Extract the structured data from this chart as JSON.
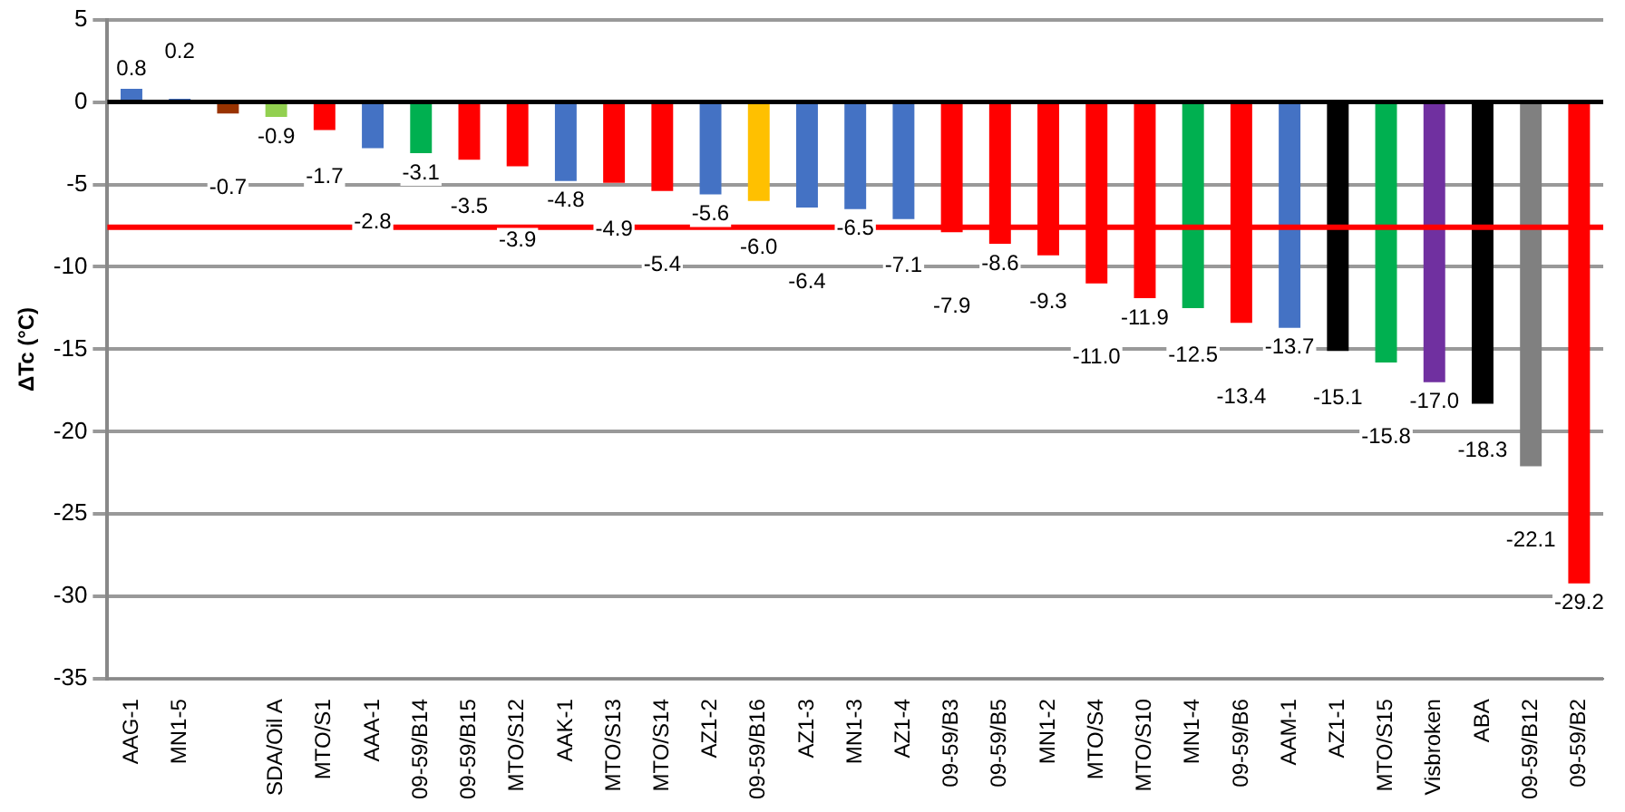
{
  "chart_data": {
    "type": "bar",
    "ylabel": "ΔTc (°C)",
    "categories": [
      "AAG-1",
      "MN1-5",
      null,
      "SDA/Oil A",
      "MTO/S1",
      "AAA-1",
      "09-59/B14",
      "09-59/B15",
      "MTO/S12",
      "AAK-1",
      "MTO/S13",
      "MTO/S14",
      "AZ1-2",
      "09-59/B16",
      "AZ1-3",
      "MN1-3",
      "AZ1-4",
      "09-59/B3",
      "09-59/B5",
      "MN1-2",
      "MTO/S4",
      "MTO/S10",
      "MN1-4",
      "09-59/B6",
      "AAM-1",
      "AZ1-1",
      "MTO/S15",
      "Visbroken",
      "ABA",
      "09-59/B12",
      "09-59/B2"
    ],
    "values": [
      0.8,
      0.2,
      -0.7,
      -0.9,
      -1.7,
      -2.8,
      -3.1,
      -3.5,
      -3.9,
      -4.8,
      -4.9,
      -5.4,
      -5.6,
      -6.0,
      -6.4,
      -6.5,
      -7.1,
      -7.9,
      -8.6,
      -9.3,
      -11.0,
      -11.9,
      -12.5,
      -13.4,
      -13.7,
      -15.1,
      -15.8,
      -17.0,
      -18.3,
      -22.1,
      -29.2
    ],
    "colors": [
      "#4472c4",
      "#4472c4",
      "#993300",
      "#92d050",
      "#ff0000",
      "#4472c4",
      "#00b050",
      "#ff0000",
      "#ff0000",
      "#4472c4",
      "#ff0000",
      "#ff0000",
      "#4472c4",
      "#ffc000",
      "#4472c4",
      "#4472c4",
      "#4472c4",
      "#ff0000",
      "#ff0000",
      "#ff0000",
      "#ff0000",
      "#ff0000",
      "#00b050",
      "#ff0000",
      "#4472c4",
      "#000000",
      "#00b050",
      "#7030a0",
      "#000000",
      "#808080",
      "#ff0000"
    ],
    "ylim": [
      -35,
      5
    ],
    "yticks": [
      -35,
      -30,
      -25,
      -20,
      -15,
      -10,
      -5,
      0,
      5
    ],
    "grid": "y",
    "legend": false,
    "value_labels": [
      "0.8",
      "0.2",
      "-0.7",
      "-0.9",
      "-1.7",
      "-2.8",
      "-3.1",
      "-3.5",
      "-3.9",
      "-4.8",
      "-4.9",
      "-5.4",
      "-5.6",
      "-6.0",
      "-6.4",
      "-6.5",
      "-7.1",
      "-7.9",
      "-8.6",
      "-9.3",
      "-11.0",
      "-11.9",
      "-12.5",
      "-13.4",
      "-13.7",
      "-15.1",
      "-15.8",
      "-17.0",
      "-18.3",
      "-22.1",
      "-29.2"
    ],
    "ref_lines": [
      {
        "axis": "y",
        "value": -7.6,
        "color": "#ff0000"
      }
    ]
  }
}
